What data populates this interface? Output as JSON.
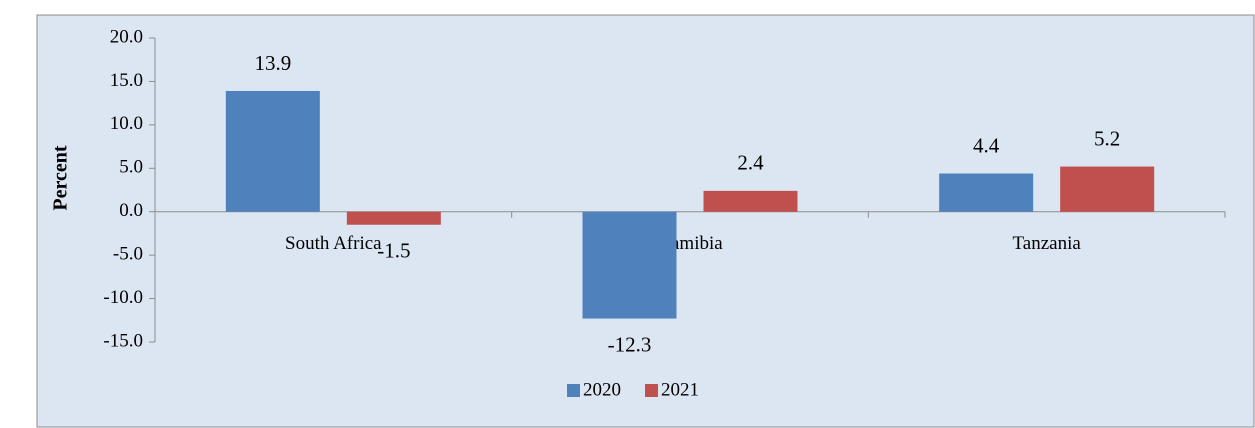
{
  "chart_data": {
    "type": "bar",
    "y_label": "Percent",
    "categories": [
      "South Africa",
      "Namibia",
      "Tanzania"
    ],
    "series": [
      {
        "name": "2020",
        "color": "#4f81bd",
        "values": [
          13.9,
          -12.3,
          4.4
        ]
      },
      {
        "name": "2021",
        "color": "#c0504d",
        "values": [
          -1.5,
          2.4,
          5.2
        ]
      }
    ],
    "ylim": [
      -15,
      20
    ],
    "yticks": [
      {
        "value": 20,
        "label": "20.0"
      },
      {
        "value": 15,
        "label": "15.0"
      },
      {
        "value": 10,
        "label": "10.0"
      },
      {
        "value": 5,
        "label": "5.0"
      },
      {
        "value": 0,
        "label": "0.0"
      },
      {
        "value": -5,
        "label": "-5.0"
      },
      {
        "value": -10,
        "label": "-10.0"
      },
      {
        "value": -15,
        "label": "-15.0"
      }
    ],
    "legend": "bottom"
  }
}
